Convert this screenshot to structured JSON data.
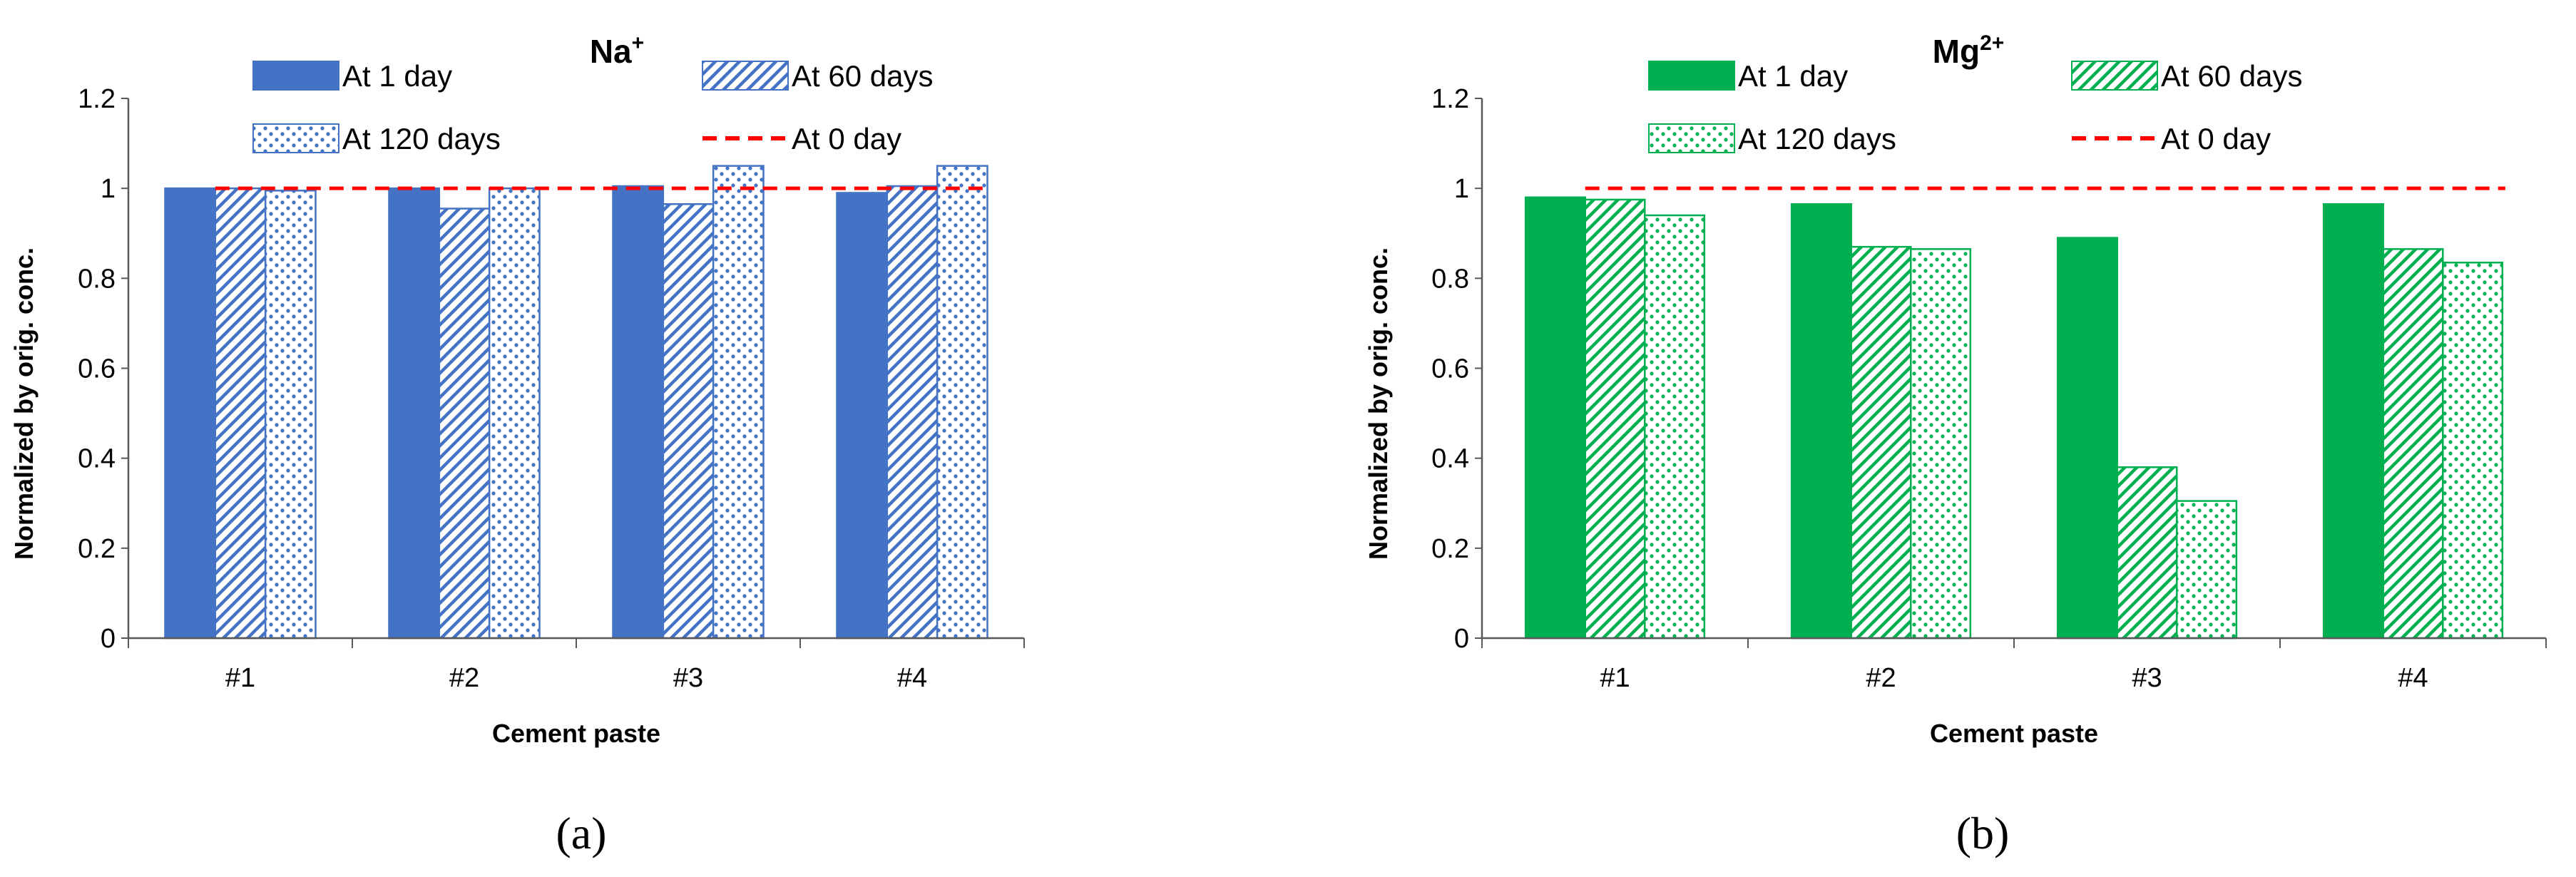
{
  "panels": [
    {
      "chart_data": {
        "type": "bar",
        "title_base": "Na",
        "title_sup": "+",
        "xlabel": "Cement paste",
        "ylabel": "Normalized by orig. conc.",
        "categories": [
          "#1",
          "#2",
          "#3",
          "#4"
        ],
        "ylim": [
          0,
          1.2
        ],
        "yticks": [
          "0",
          "0.2",
          "0.4",
          "0.6",
          "0.8",
          "1",
          "1.2"
        ],
        "grid": false,
        "series": [
          {
            "name": "At 1 day",
            "values": [
              1.0,
              1.0,
              1.005,
              0.99
            ]
          },
          {
            "name": "At 60 days",
            "values": [
              1.0,
              0.955,
              0.965,
              1.005
            ]
          },
          {
            "name": "At 120 days",
            "values": [
              0.995,
              1.0,
              1.05,
              1.05
            ]
          }
        ],
        "reference_line": {
          "name": "At 0 day",
          "value": 1.0
        },
        "legend_position": "top"
      },
      "color": "#4472C4",
      "caption": "(a)"
    },
    {
      "chart_data": {
        "type": "bar",
        "title_base": "Mg",
        "title_sup": "2+",
        "xlabel": "Cement paste",
        "ylabel": "Normalized by orig. conc.",
        "categories": [
          "#1",
          "#2",
          "#3",
          "#4"
        ],
        "ylim": [
          0,
          1.2
        ],
        "yticks": [
          "0",
          "0.2",
          "0.4",
          "0.6",
          "0.8",
          "1",
          "1.2"
        ],
        "grid": false,
        "series": [
          {
            "name": "At 1 day",
            "values": [
              0.98,
              0.965,
              0.89,
              0.965
            ]
          },
          {
            "name": "At 60 days",
            "values": [
              0.975,
              0.87,
              0.38,
              0.865
            ]
          },
          {
            "name": "At 120 days",
            "values": [
              0.94,
              0.865,
              0.305,
              0.835
            ]
          }
        ],
        "reference_line": {
          "name": "At 0 day",
          "value": 1.0
        },
        "legend_position": "top"
      },
      "color": "#00B050",
      "caption": "(b)"
    }
  ],
  "colors": {
    "reference_line": "#FF0000",
    "axis": "#595959"
  }
}
